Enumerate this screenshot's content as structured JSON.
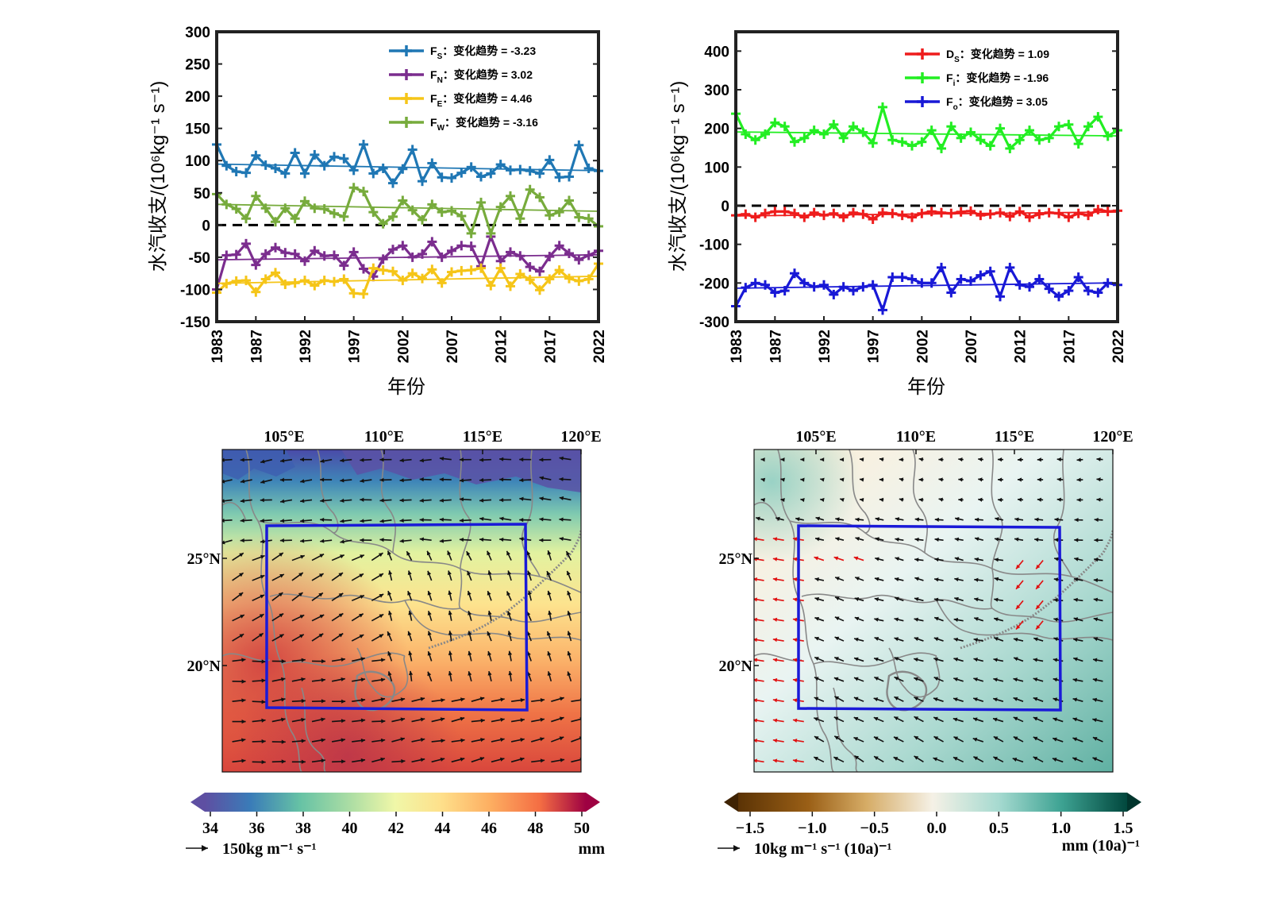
{
  "x_axis_title": "年份",
  "y_axis_title": "水汽收支/(10⁶kg⁻¹ s⁻¹)",
  "legend_sep": "：变化趋势 = ",
  "chart_data": [
    {
      "type": "line",
      "id": "top-left",
      "xlabel": "年份",
      "ylabel": "水汽收支/(10⁶kg⁻¹ s⁻¹)",
      "xlim": [
        1983,
        2022
      ],
      "ylim": [
        -150,
        300
      ],
      "xticks": [
        1983,
        1987,
        1992,
        1997,
        2002,
        2007,
        2012,
        2017,
        2022
      ],
      "yticks": [
        -150,
        -100,
        -50,
        0,
        50,
        100,
        150,
        200,
        250,
        300
      ],
      "zero_line": true,
      "legend_position": "top-right",
      "x": [
        1983,
        1984,
        1985,
        1986,
        1987,
        1988,
        1989,
        1990,
        1991,
        1992,
        1993,
        1994,
        1995,
        1996,
        1997,
        1998,
        1999,
        2000,
        2001,
        2002,
        2003,
        2004,
        2005,
        2006,
        2007,
        2008,
        2009,
        2010,
        2011,
        2012,
        2013,
        2014,
        2015,
        2016,
        2017,
        2018,
        2019,
        2020,
        2021,
        2022
      ],
      "series": [
        {
          "name": "F",
          "sub": "S",
          "trend": "-3.23",
          "color": "#1f77b4",
          "values": [
            125,
            92,
            83,
            81,
            108,
            93,
            88,
            80,
            112,
            80,
            109,
            92,
            106,
            103,
            85,
            125,
            80,
            88,
            65,
            87,
            117,
            68,
            96,
            74,
            73,
            81,
            90,
            75,
            80,
            94,
            85,
            86,
            84,
            80,
            101,
            74,
            75,
            124,
            88,
            84
          ],
          "fit": [
            94.6,
            84.4
          ]
        },
        {
          "name": "F",
          "sub": "N",
          "trend": "3.02",
          "color": "#7b2d8e",
          "values": [
            -100,
            -47,
            -46,
            -29,
            -62,
            -45,
            -35,
            -43,
            -45,
            -56,
            -40,
            -48,
            -47,
            -63,
            -42,
            -68,
            -80,
            -53,
            -38,
            -32,
            -50,
            -45,
            -26,
            -50,
            -40,
            -32,
            -33,
            -64,
            -18,
            -56,
            -42,
            -48,
            -65,
            -72,
            -49,
            -32,
            -44,
            -54,
            -47,
            -40
          ],
          "fit": [
            -54,
            -46.2
          ]
        },
        {
          "name": "F",
          "sub": "E",
          "trend": "4.46",
          "color": "#f5c518",
          "values": [
            -105,
            -91,
            -87,
            -86,
            -104,
            -84,
            -74,
            -92,
            -90,
            -86,
            -94,
            -86,
            -88,
            -84,
            -106,
            -107,
            -67,
            -70,
            -72,
            -86,
            -75,
            -83,
            -69,
            -90,
            -73,
            -71,
            -70,
            -67,
            -94,
            -67,
            -95,
            -76,
            -85,
            -101,
            -84,
            -70,
            -83,
            -87,
            -84,
            -60
          ],
          "fit": [
            -90.6,
            -79.5
          ]
        },
        {
          "name": "F",
          "sub": "W",
          "trend": "-3.16",
          "color": "#77ab3c",
          "values": [
            48,
            32,
            25,
            10,
            45,
            26,
            5,
            26,
            10,
            37,
            26,
            25,
            18,
            13,
            58,
            52,
            20,
            2,
            13,
            38,
            23,
            8,
            32,
            20,
            22,
            14,
            -13,
            35,
            -13,
            28,
            45,
            10,
            55,
            43,
            15,
            20,
            38,
            12,
            10,
            -2
          ],
          "fit": [
            32.1,
            21.4
          ]
        }
      ]
    },
    {
      "type": "line",
      "id": "top-right",
      "xlabel": "年份",
      "ylabel": "水汽收支/(10⁶kg⁻¹ s⁻¹)",
      "xlim": [
        1983,
        2022
      ],
      "ylim": [
        -300,
        450
      ],
      "xticks": [
        1983,
        1987,
        1992,
        1997,
        2002,
        2007,
        2012,
        2017,
        2022
      ],
      "yticks": [
        -300,
        -200,
        -100,
        0,
        100,
        200,
        300,
        400
      ],
      "zero_line": true,
      "legend_position": "top-right",
      "x": [
        1983,
        1984,
        1985,
        1986,
        1987,
        1988,
        1989,
        1990,
        1991,
        1992,
        1993,
        1994,
        1995,
        1996,
        1997,
        1998,
        1999,
        2000,
        2001,
        2002,
        2003,
        2004,
        2005,
        2006,
        2007,
        2008,
        2009,
        2010,
        2011,
        2012,
        2013,
        2014,
        2015,
        2016,
        2017,
        2018,
        2019,
        2020,
        2021,
        2022
      ],
      "series": [
        {
          "name": "D",
          "sub": "S",
          "trend": "1.09",
          "color": "#ee1c1c",
          "values": [
            -25,
            -22,
            -30,
            -20,
            -15,
            -15,
            -20,
            -30,
            -18,
            -25,
            -20,
            -30,
            -18,
            -22,
            -35,
            -18,
            -20,
            -25,
            -30,
            -20,
            -15,
            -18,
            -20,
            -16,
            -14,
            -25,
            -22,
            -18,
            -28,
            -15,
            -30,
            -22,
            -18,
            -20,
            -30,
            -20,
            -25,
            -10,
            -15,
            -13
          ],
          "fit": [
            -26.5,
            -16.4
          ]
        },
        {
          "name": "F",
          "sub": "i",
          "trend": "-1.96",
          "color": "#22ee22",
          "values": [
            238,
            185,
            170,
            185,
            215,
            205,
            165,
            175,
            195,
            185,
            210,
            175,
            205,
            190,
            162,
            255,
            170,
            165,
            155,
            165,
            195,
            148,
            205,
            175,
            190,
            170,
            155,
            200,
            148,
            170,
            195,
            170,
            175,
            205,
            210,
            160,
            205,
            230,
            180,
            195
          ],
          "fit": [
            190.8,
            180.6
          ]
        },
        {
          "name": "F",
          "sub": "o",
          "trend": "3.05",
          "color": "#1818d6",
          "values": [
            -260,
            -212,
            -200,
            -205,
            -225,
            -220,
            -175,
            -200,
            -210,
            -205,
            -230,
            -210,
            -220,
            -210,
            -205,
            -270,
            -185,
            -185,
            -190,
            -200,
            -200,
            -160,
            -225,
            -190,
            -195,
            -180,
            -170,
            -235,
            -160,
            -205,
            -210,
            -190,
            -215,
            -235,
            -220,
            -185,
            -220,
            -225,
            -200,
            -205
          ],
          "fit": [
            -213.4,
            -199.6
          ]
        }
      ]
    }
  ],
  "maps": {
    "left": {
      "lon_ticks": [
        "105°E",
        "110°E",
        "115°E",
        "120°E"
      ],
      "lat_ticks": [
        "25°N",
        "20°N"
      ],
      "colorbar_ticks": [
        "34",
        "36",
        "38",
        "40",
        "42",
        "44",
        "46",
        "48",
        "50"
      ],
      "colorbar_unit": "mm",
      "vector_reference": "150kg m⁻¹ s⁻¹"
    },
    "right": {
      "lon_ticks": [
        "105°E",
        "110°E",
        "115°E",
        "120°E"
      ],
      "lat_ticks": [
        "25°N",
        "20°N"
      ],
      "colorbar_ticks": [
        "−1.5",
        "−1.0",
        "−0.5",
        "0.0",
        "0.5",
        "1.0",
        "1.5"
      ],
      "colorbar_unit": "mm (10a)⁻¹",
      "vector_reference": "10kg m⁻¹ s⁻¹ (10a)⁻¹"
    }
  },
  "colors": {
    "box": "#1a1ad8",
    "arrows": "#111111",
    "arrows_highlight": "#e01010",
    "boundaries": "#888888"
  }
}
